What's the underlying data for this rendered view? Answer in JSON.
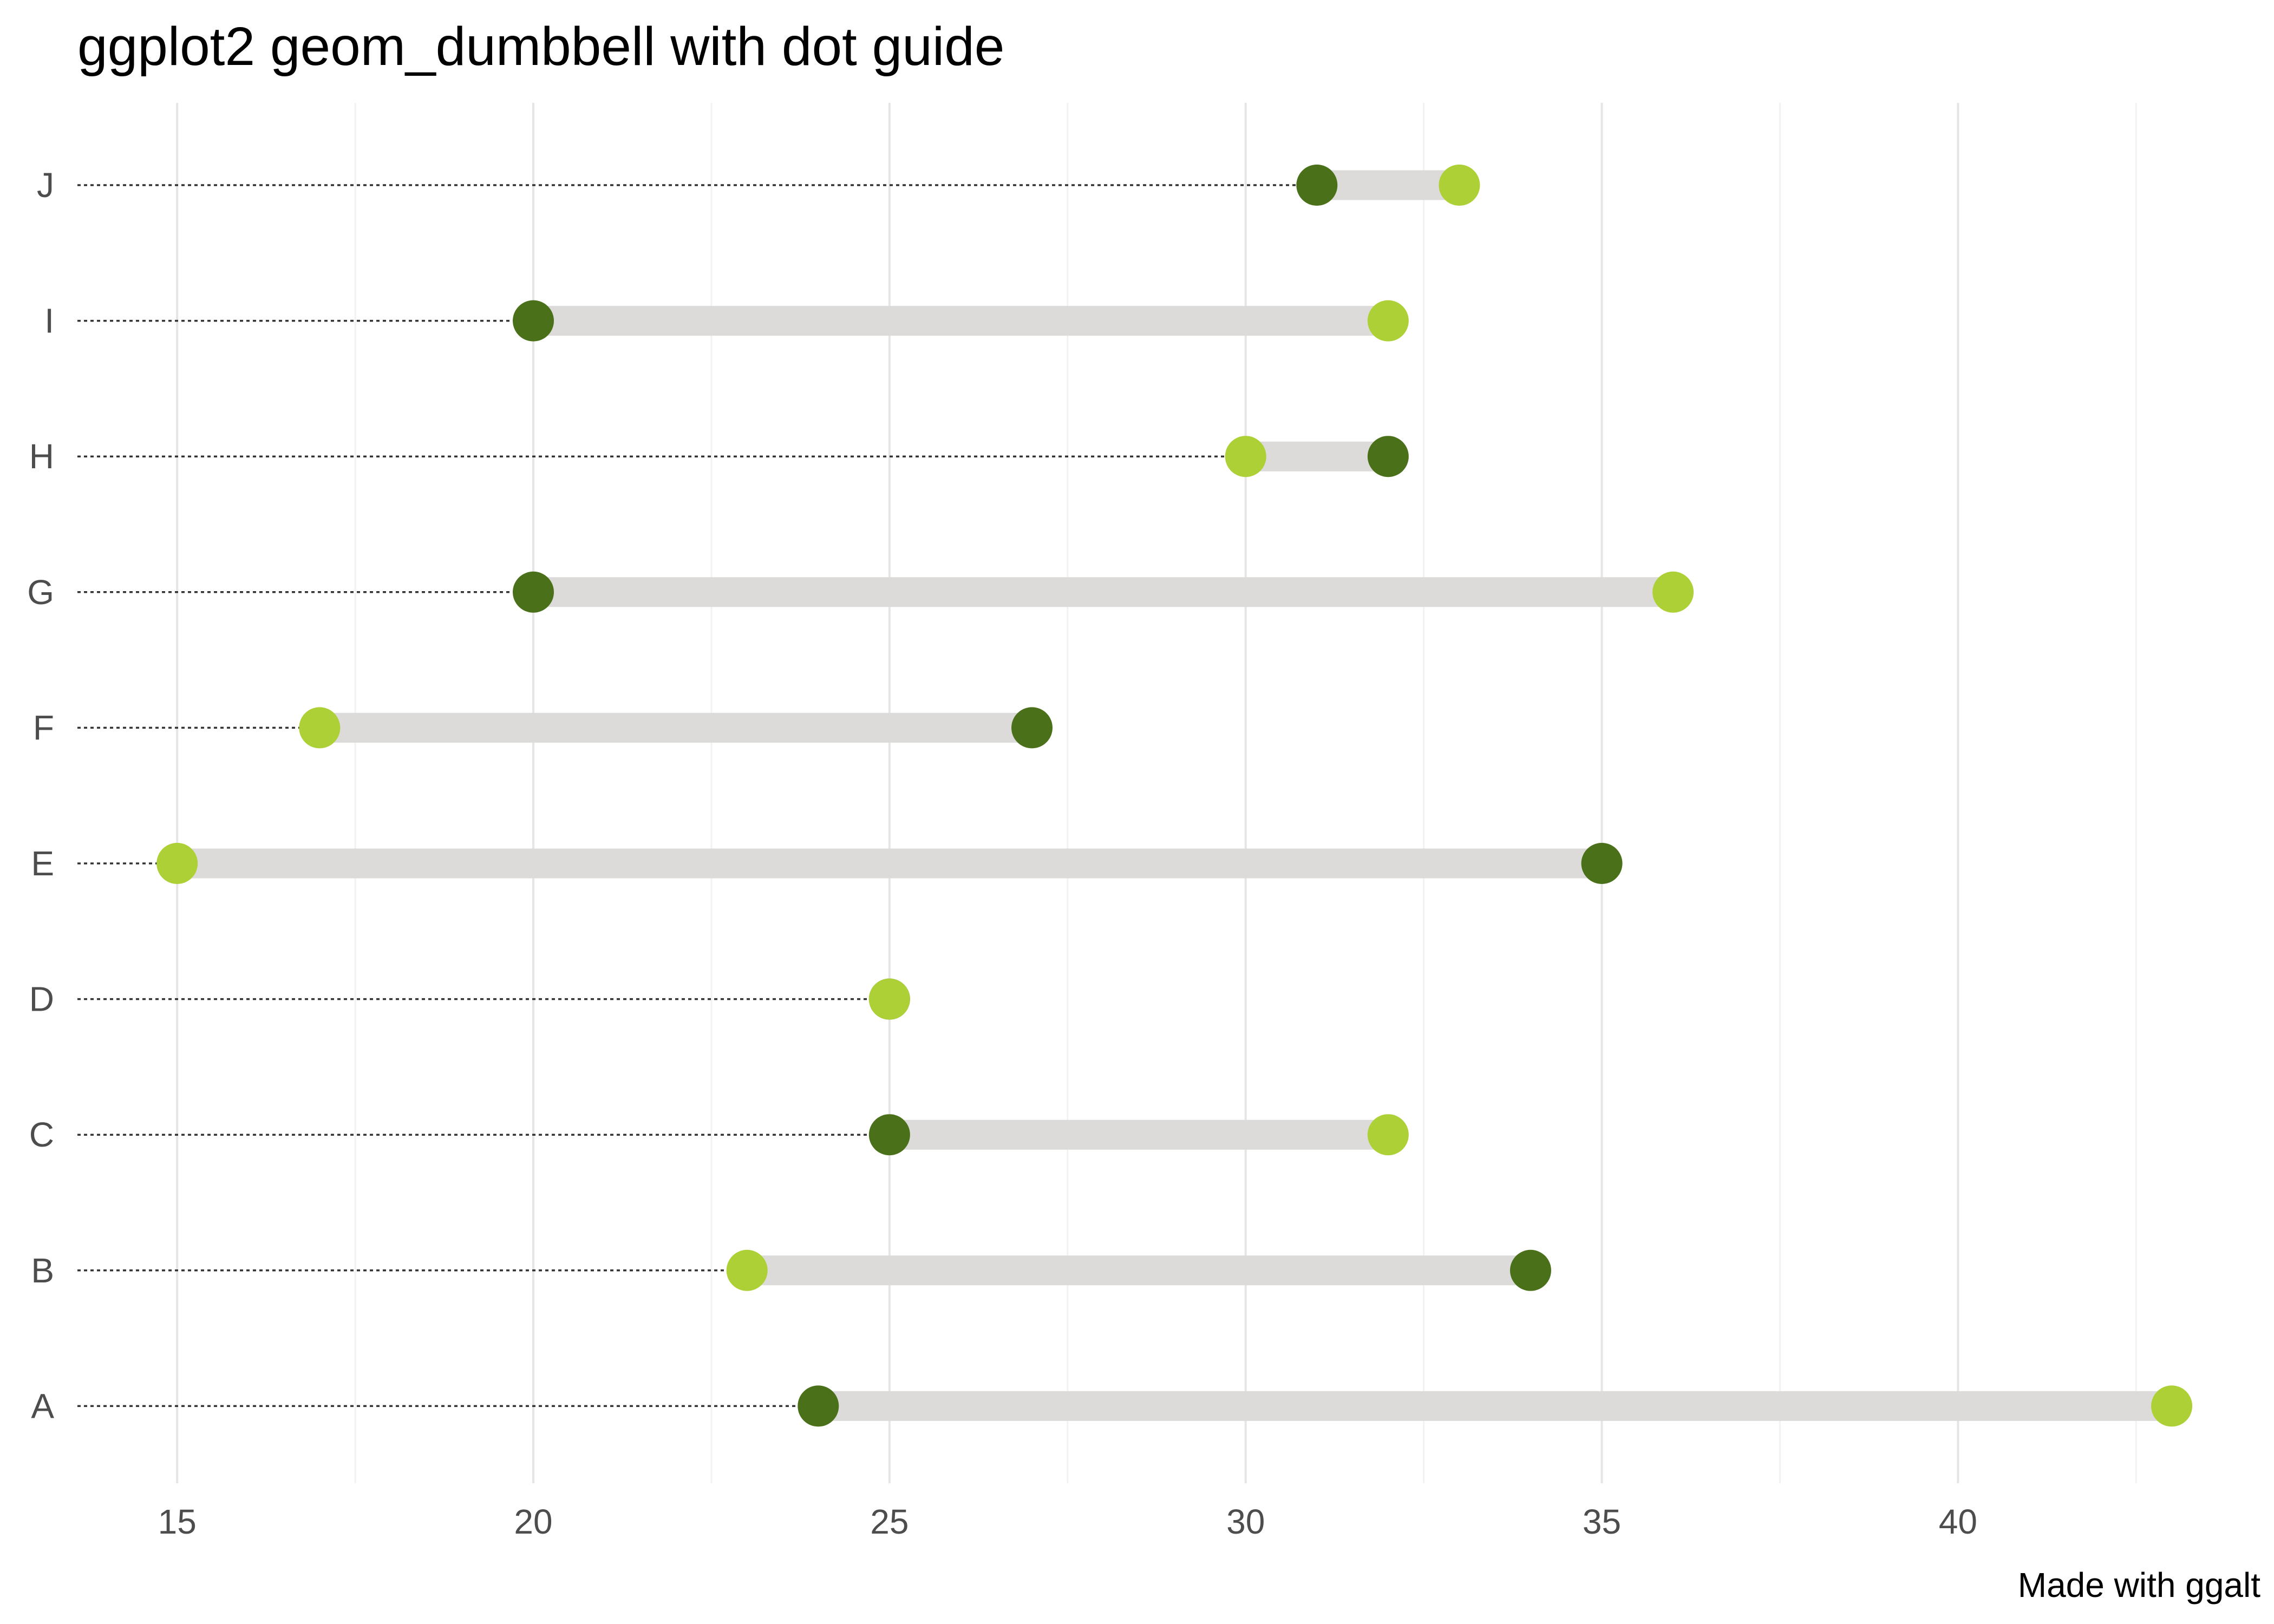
{
  "chart_data": {
    "type": "dumbbell",
    "title": "ggplot2 geom_dumbbell with dot guide",
    "caption": "Made with ggalt",
    "xlabel": "",
    "ylabel": "",
    "xlim": [
      13.6,
      43.6
    ],
    "x_ticks": [
      15,
      20,
      25,
      30,
      35,
      40
    ],
    "x_tick_labels": [
      "15",
      "20",
      "25",
      "30",
      "35",
      "40"
    ],
    "grid": {
      "major_x": true,
      "minor_x": true,
      "major_y": false
    },
    "categories": [
      "A",
      "B",
      "C",
      "D",
      "E",
      "F",
      "G",
      "H",
      "I",
      "J"
    ],
    "series": [
      {
        "values": [
          24,
          34,
          25,
          25,
          35,
          27,
          20,
          32,
          20,
          31
        ]
      },
      {
        "values": [
          43,
          23,
          32,
          25,
          15,
          17,
          36,
          30,
          32,
          33
        ]
      }
    ],
    "colors": {
      "x_point": "#4a7119",
      "xend_point": "#acd036",
      "segment": "#dcdbd9",
      "dot_guide": "#333333",
      "grid_major": "#e5e5e5",
      "grid_minor": "#f2f2f2"
    }
  }
}
